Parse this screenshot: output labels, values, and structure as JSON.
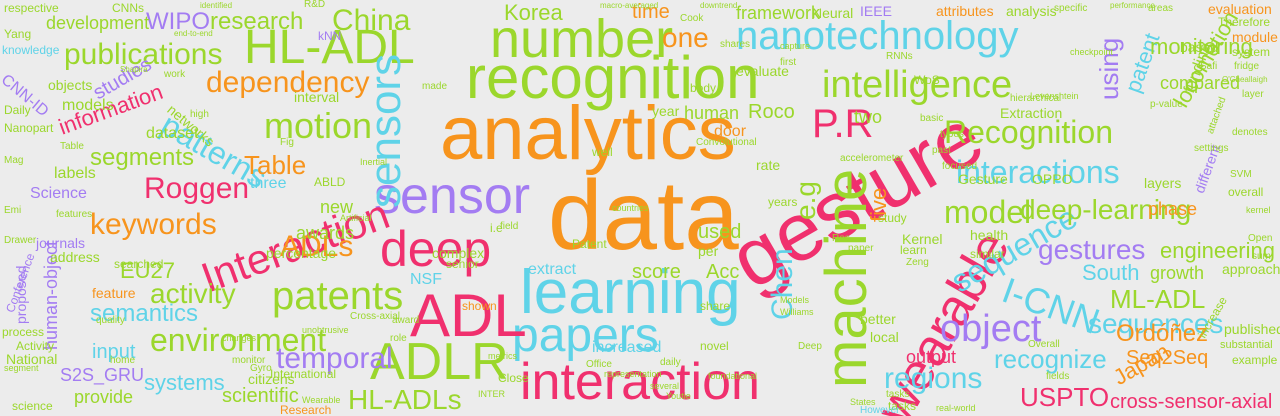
{
  "palette": {
    "orange": "#f7941d",
    "lime": "#9bd72c",
    "cyan": "#5fd3e8",
    "purple": "#a37cf2",
    "pink": "#f0306e",
    "background": "#ececec"
  },
  "words": [
    {
      "text": "data",
      "color": "orange"
    },
    {
      "text": "analytics",
      "color": "orange"
    },
    {
      "text": "gesture",
      "color": "pink"
    },
    {
      "text": "recognition",
      "color": "lime"
    },
    {
      "text": "learning",
      "color": "cyan"
    },
    {
      "text": "papers",
      "color": "cyan"
    },
    {
      "text": "interaction",
      "color": "pink"
    },
    {
      "text": "machine",
      "color": "lime"
    },
    {
      "text": "ADL",
      "color": "pink"
    },
    {
      "text": "deep",
      "color": "pink"
    },
    {
      "text": "sensor",
      "color": "purple"
    },
    {
      "text": "number",
      "color": "lime"
    },
    {
      "text": "HL-ADL",
      "color": "lime"
    },
    {
      "text": "nanotechnology",
      "color": "cyan"
    },
    {
      "text": "ADLR",
      "color": "lime"
    },
    {
      "text": "wearable",
      "color": "pink"
    },
    {
      "text": "intelligence",
      "color": "lime"
    },
    {
      "text": "Interaction",
      "color": "pink"
    },
    {
      "text": "sensors",
      "color": "cyan"
    },
    {
      "text": "patents",
      "color": "lime"
    },
    {
      "text": "object",
      "color": "purple"
    },
    {
      "text": "sequence",
      "color": "cyan"
    },
    {
      "text": "I-CNN",
      "color": "cyan"
    },
    {
      "text": "P.R",
      "color": "pink"
    },
    {
      "text": "model",
      "color": "lime"
    },
    {
      "text": "interactions",
      "color": "cyan"
    },
    {
      "text": "Recognition",
      "color": "lime"
    },
    {
      "text": "environment",
      "color": "lime"
    },
    {
      "text": "regions",
      "color": "cyan"
    },
    {
      "text": "HL-ADLs",
      "color": "lime"
    },
    {
      "text": "dependency",
      "color": "orange"
    },
    {
      "text": "motion",
      "color": "lime"
    },
    {
      "text": "temporal",
      "color": "purple"
    },
    {
      "text": "deep-learning",
      "color": "lime"
    },
    {
      "text": "gestures",
      "color": "purple"
    },
    {
      "text": "patterns",
      "color": "cyan"
    },
    {
      "text": "China",
      "color": "lime"
    },
    {
      "text": "research",
      "color": "lime"
    },
    {
      "text": "publications",
      "color": "lime"
    },
    {
      "text": "WIPO",
      "color": "purple"
    },
    {
      "text": "Korea",
      "color": "lime"
    },
    {
      "text": "one",
      "color": "orange"
    },
    {
      "text": "ADLs",
      "color": "orange"
    },
    {
      "text": "keywords",
      "color": "orange"
    },
    {
      "text": "Roggen",
      "color": "pink"
    },
    {
      "text": "segments",
      "color": "lime"
    },
    {
      "text": "information",
      "color": "pink"
    },
    {
      "text": "activity",
      "color": "lime"
    },
    {
      "text": "semantics",
      "color": "cyan"
    },
    {
      "text": "EU27",
      "color": "lime"
    },
    {
      "text": "Table",
      "color": "orange"
    },
    {
      "text": "sequences",
      "color": "cyan"
    },
    {
      "text": "recognize",
      "color": "cyan"
    },
    {
      "text": "ML-ADL",
      "color": "lime"
    },
    {
      "text": "South",
      "color": "cyan"
    },
    {
      "text": "USPTO",
      "color": "pink"
    },
    {
      "text": "Seq2Seq",
      "color": "orange"
    },
    {
      "text": "cross-sensor-axial",
      "color": "pink"
    },
    {
      "text": "Ordóñez",
      "color": "orange"
    },
    {
      "text": "Japan",
      "color": "orange"
    },
    {
      "text": "engineering",
      "color": "lime"
    },
    {
      "text": "growth",
      "color": "lime"
    },
    {
      "text": "locomotion",
      "color": "lime"
    },
    {
      "text": "patent",
      "color": "cyan"
    },
    {
      "text": "using",
      "color": "purple"
    },
    {
      "text": "monitoring",
      "color": "lime"
    },
    {
      "text": "framework",
      "color": "lime"
    },
    {
      "text": "time",
      "color": "orange"
    },
    {
      "text": "Chen",
      "color": "cyan"
    },
    {
      "text": "e.g",
      "color": "lime"
    },
    {
      "text": "systems",
      "color": "cyan"
    },
    {
      "text": "scientific",
      "color": "lime"
    },
    {
      "text": "input",
      "color": "cyan"
    },
    {
      "text": "provide",
      "color": "lime"
    },
    {
      "text": "S2S_GRU",
      "color": "purple"
    },
    {
      "text": "human-object",
      "color": "purple"
    },
    {
      "text": "feature",
      "color": "orange"
    },
    {
      "text": "studies",
      "color": "purple"
    },
    {
      "text": "development",
      "color": "lime"
    },
    {
      "text": "CNN-ID",
      "color": "purple"
    },
    {
      "text": "models",
      "color": "lime"
    },
    {
      "text": "dataset",
      "color": "lime"
    },
    {
      "text": "human",
      "color": "lime"
    },
    {
      "text": "Roco",
      "color": "lime"
    },
    {
      "text": "two",
      "color": "lime"
    },
    {
      "text": "five",
      "color": "orange"
    },
    {
      "text": "used",
      "color": "lime"
    },
    {
      "text": "score",
      "color": "lime"
    },
    {
      "text": "extract",
      "color": "cyan"
    },
    {
      "text": "Acc",
      "color": "lime"
    },
    {
      "text": "awards",
      "color": "lime"
    },
    {
      "text": "new",
      "color": "lime"
    },
    {
      "text": "three",
      "color": "cyan"
    },
    {
      "text": "NSF",
      "color": "cyan"
    },
    {
      "text": "output",
      "color": "pink"
    },
    {
      "text": "increased",
      "color": "cyan"
    },
    {
      "text": "citizens",
      "color": "lime"
    },
    {
      "text": "Research",
      "color": "orange"
    },
    {
      "text": "compared",
      "color": "lime"
    },
    {
      "text": "funding",
      "color": "lime"
    },
    {
      "text": "phase",
      "color": "orange"
    },
    {
      "text": "address",
      "color": "lime"
    },
    {
      "text": "based",
      "color": "lime"
    },
    {
      "text": "evaluation",
      "color": "orange"
    },
    {
      "text": "module",
      "color": "orange"
    },
    {
      "text": "approach",
      "color": "lime"
    },
    {
      "text": "published",
      "color": "lime"
    },
    {
      "text": "example",
      "color": "lime"
    },
    {
      "text": "National",
      "color": "lime"
    },
    {
      "text": "Activity",
      "color": "lime"
    },
    {
      "text": "science",
      "color": "lime"
    },
    {
      "text": "Science",
      "color": "purple"
    },
    {
      "text": "labels",
      "color": "lime"
    },
    {
      "text": "objects",
      "color": "lime"
    },
    {
      "text": "knowledge",
      "color": "cyan"
    },
    {
      "text": "respective",
      "color": "lime"
    },
    {
      "text": "CNNs",
      "color": "lime"
    },
    {
      "text": "IEEE",
      "color": "purple"
    },
    {
      "text": "attributes",
      "color": "orange"
    },
    {
      "text": "analysis",
      "color": "lime"
    },
    {
      "text": "Therefore",
      "color": "lime"
    },
    {
      "text": "system",
      "color": "lime"
    },
    {
      "text": "kNN",
      "color": "purple"
    },
    {
      "text": "Neural",
      "color": "lime"
    },
    {
      "text": "networks",
      "color": "lime"
    },
    {
      "text": "evaluate",
      "color": "lime"
    },
    {
      "text": "year",
      "color": "lime"
    },
    {
      "text": "door",
      "color": "orange"
    },
    {
      "text": "interval",
      "color": "lime"
    },
    {
      "text": "Gesture",
      "color": "lime"
    },
    {
      "text": "OPPO",
      "color": "lime"
    },
    {
      "text": "layers",
      "color": "lime"
    },
    {
      "text": "different",
      "color": "purple"
    },
    {
      "text": "overall",
      "color": "lime"
    },
    {
      "text": "Extraction",
      "color": "lime"
    },
    {
      "text": "health",
      "color": "lime"
    },
    {
      "text": "similar",
      "color": "lime"
    },
    {
      "text": "tasks",
      "color": "lime"
    },
    {
      "text": "senior",
      "color": "lime"
    },
    {
      "text": "percentage",
      "color": "lime"
    },
    {
      "text": "International",
      "color": "lime"
    },
    {
      "text": "complex",
      "color": "lime"
    },
    {
      "text": "local",
      "color": "lime"
    },
    {
      "text": "better",
      "color": "lime"
    },
    {
      "text": "Patent",
      "color": "lime"
    },
    {
      "text": "per",
      "color": "lime"
    },
    {
      "text": "Kernel",
      "color": "lime"
    },
    {
      "text": "learn",
      "color": "lime"
    },
    {
      "text": "searched",
      "color": "lime"
    },
    {
      "text": "journals",
      "color": "purple"
    },
    {
      "text": "proposed",
      "color": "purple"
    },
    {
      "text": "Conference",
      "color": "purple"
    },
    {
      "text": "process",
      "color": "lime"
    },
    {
      "text": "shown",
      "color": "orange"
    },
    {
      "text": "Close",
      "color": "lime"
    },
    {
      "text": "However",
      "color": "cyan"
    },
    {
      "text": "Yang",
      "color": "lime"
    },
    {
      "text": "Daily",
      "color": "lime"
    },
    {
      "text": "Nanopart",
      "color": "lime"
    },
    {
      "text": "Mag",
      "color": "lime"
    },
    {
      "text": "Emi",
      "color": "lime"
    },
    {
      "text": "Fig",
      "color": "lime"
    },
    {
      "text": "RNNs",
      "color": "lime"
    },
    {
      "text": "Cook",
      "color": "lime"
    },
    {
      "text": "settings",
      "color": "lime"
    },
    {
      "text": "SVM",
      "color": "lime"
    },
    {
      "text": "Open",
      "color": "lime"
    },
    {
      "text": "sum",
      "color": "lime"
    },
    {
      "text": "fridge",
      "color": "lime"
    },
    {
      "text": "layer",
      "color": "lime"
    },
    {
      "text": "p-value",
      "color": "lime"
    },
    {
      "text": "kernel",
      "color": "lime"
    },
    {
      "text": "denotes",
      "color": "lime"
    },
    {
      "text": "first",
      "color": "lime"
    },
    {
      "text": "made",
      "color": "lime"
    },
    {
      "text": "high",
      "color": "lime"
    },
    {
      "text": "features",
      "color": "lime"
    },
    {
      "text": "Table",
      "color": "lime"
    },
    {
      "text": "rate",
      "color": "lime"
    },
    {
      "text": "ABLD",
      "color": "lime"
    },
    {
      "text": "years",
      "color": "lime"
    },
    {
      "text": "study",
      "color": "lime"
    },
    {
      "text": "past",
      "color": "lime"
    },
    {
      "text": "focused",
      "color": "lime"
    },
    {
      "text": "types",
      "color": "lime"
    },
    {
      "text": "paper",
      "color": "lime"
    },
    {
      "text": "Res",
      "color": "lime"
    },
    {
      "text": "Zeng",
      "color": "lime"
    },
    {
      "text": "Deep",
      "color": "lime"
    },
    {
      "text": "Models",
      "color": "lime"
    },
    {
      "text": "Williams",
      "color": "lime"
    },
    {
      "text": "share",
      "color": "lime"
    },
    {
      "text": "field",
      "color": "lime"
    },
    {
      "text": "novel",
      "color": "lime"
    },
    {
      "text": "metrics",
      "color": "lime"
    },
    {
      "text": "role",
      "color": "lime"
    },
    {
      "text": "home",
      "color": "lime"
    },
    {
      "text": "monitor",
      "color": "lime"
    },
    {
      "text": "quality",
      "color": "lime"
    },
    {
      "text": "Gyro",
      "color": "lime"
    },
    {
      "text": "Office",
      "color": "lime"
    },
    {
      "text": "daily",
      "color": "lime"
    },
    {
      "text": "award",
      "color": "lime"
    },
    {
      "text": "changes",
      "color": "lime"
    },
    {
      "text": "well",
      "color": "lime"
    },
    {
      "text": "R&D",
      "color": "lime"
    },
    {
      "text": "work",
      "color": "lime"
    },
    {
      "text": "shares",
      "color": "lime"
    },
    {
      "text": "areas",
      "color": "lime"
    },
    {
      "text": "specific",
      "color": "lime"
    },
    {
      "text": "capture",
      "color": "lime"
    },
    {
      "text": "body",
      "color": "lime"
    },
    {
      "text": "i.e",
      "color": "lime"
    },
    {
      "text": "Cross-axial",
      "color": "lime"
    },
    {
      "text": "Convolutional",
      "color": "lime"
    },
    {
      "text": "accelerometer",
      "color": "lime"
    },
    {
      "text": "hierarchical",
      "color": "lime"
    },
    {
      "text": "basic",
      "color": "lime"
    },
    {
      "text": "Levenshtein",
      "color": "lime"
    },
    {
      "text": "Safi",
      "color": "lime"
    },
    {
      "text": "substantial",
      "color": "lime"
    },
    {
      "text": "increase",
      "color": "lime"
    },
    {
      "text": "fields",
      "color": "lime"
    },
    {
      "text": "attached",
      "color": "lime"
    },
    {
      "text": "Overall",
      "color": "lime"
    },
    {
      "text": "tasks",
      "color": "lime"
    },
    {
      "text": "Drawer",
      "color": "lime"
    },
    {
      "text": "segment",
      "color": "lime"
    },
    {
      "text": "representation",
      "color": "lime"
    },
    {
      "text": "foundational",
      "color": "lime"
    },
    {
      "text": "several",
      "color": "lime"
    },
    {
      "text": "INTER",
      "color": "lime"
    },
    {
      "text": "Youtie",
      "color": "lime"
    },
    {
      "text": "real-world",
      "color": "lime"
    },
    {
      "text": "States",
      "color": "lime"
    },
    {
      "text": "Wearable",
      "color": "lime"
    },
    {
      "text": "unobtrusive",
      "color": "lime"
    },
    {
      "text": "countries",
      "color": "lime"
    },
    {
      "text": "Inertial",
      "color": "lime"
    },
    {
      "text": "Artificial",
      "color": "lime"
    },
    {
      "text": "WoS",
      "color": "lime"
    },
    {
      "text": "checkpoint",
      "color": "lime"
    },
    {
      "text": "macro-averaged",
      "color": "lime"
    },
    {
      "text": "identified",
      "color": "lime"
    },
    {
      "text": "downtrend",
      "color": "lime"
    },
    {
      "text": "end-to-end",
      "color": "lime"
    },
    {
      "text": "Shapira",
      "color": "lime"
    },
    {
      "text": "performance",
      "color": "lime"
    },
    {
      "text": "O'Cheallaigh",
      "color": "lime"
    }
  ]
}
